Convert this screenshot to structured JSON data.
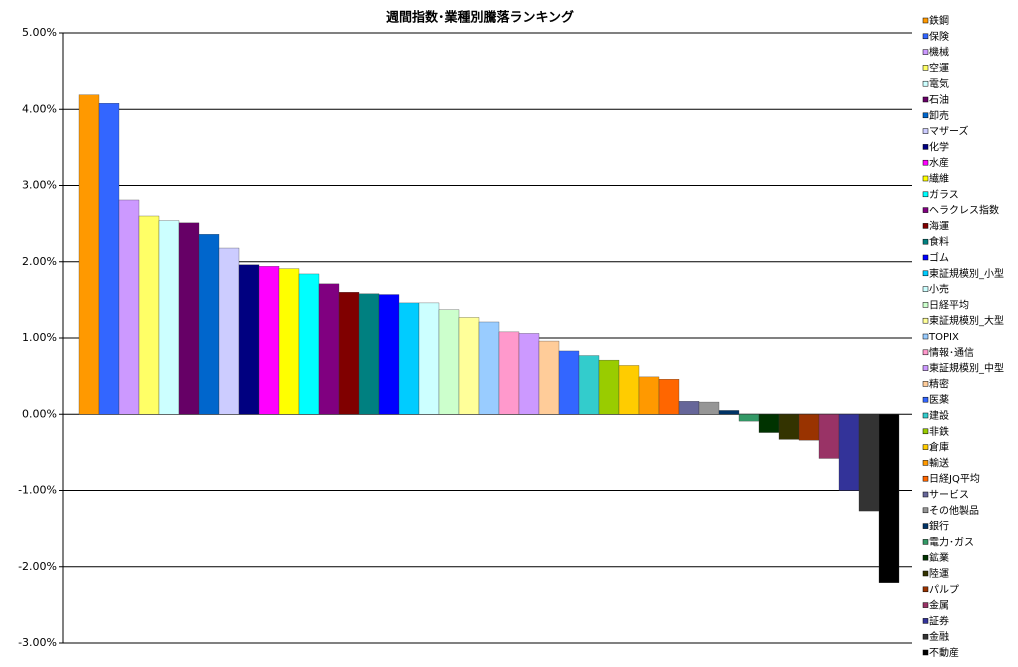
{
  "chart_data": {
    "type": "bar",
    "title": "週間指数･業種別騰落ランキング",
    "categories": [
      "鉄鋼",
      "保険",
      "機械",
      "空運",
      "電気",
      "石油",
      "卸売",
      "マザーズ",
      "化学",
      "水産",
      "繊維",
      "ガラス",
      "ヘラクレス指数",
      "海運",
      "食料",
      "ゴム",
      "東証規模別_小型",
      "小売",
      "日経平均",
      "東証規模別_大型",
      "TOPIX",
      "情報･通信",
      "東証規模別_中型",
      "精密",
      "医薬",
      "建設",
      "非鉄",
      "倉庫",
      "輸送",
      "日経JQ平均",
      "サービス",
      "その他製品",
      "銀行",
      "電力･ガス",
      "鉱業",
      "陸運",
      "パルプ",
      "金属",
      "証券",
      "金融",
      "不動産"
    ],
    "values": [
      4.19,
      4.08,
      2.81,
      2.6,
      2.54,
      2.51,
      2.36,
      2.18,
      1.96,
      1.94,
      1.91,
      1.84,
      1.71,
      1.6,
      1.58,
      1.57,
      1.46,
      1.46,
      1.37,
      1.27,
      1.21,
      1.08,
      1.06,
      0.96,
      0.83,
      0.77,
      0.71,
      0.64,
      0.49,
      0.46,
      0.17,
      0.16,
      0.05,
      -0.09,
      -0.24,
      -0.33,
      -0.34,
      -0.58,
      -1.0,
      -1.27,
      -2.21
    ],
    "colors": [
      "#ff9900",
      "#3366ff",
      "#cc99ff",
      "#ffff66",
      "#ccffff",
      "#660066",
      "#0066cc",
      "#ccccff",
      "#000080",
      "#ff00ff",
      "#ffff00",
      "#00ffff",
      "#800080",
      "#800000",
      "#008080",
      "#0000ff",
      "#00ccff",
      "#ccffff",
      "#ccffcc",
      "#ffff99",
      "#99ccff",
      "#ff99cc",
      "#cc99ff",
      "#ffcc99",
      "#3366ff",
      "#33cccc",
      "#99cc00",
      "#ffcc00",
      "#ff9900",
      "#ff6600",
      "#666699",
      "#969696",
      "#003366",
      "#339966",
      "#003300",
      "#333300",
      "#993300",
      "#993366",
      "#333399",
      "#333333",
      "#000000"
    ],
    "ylim": [
      -3,
      5
    ],
    "yticks": [
      {
        "value": -3,
        "label": "-3.00%"
      },
      {
        "value": -2,
        "label": "-2.00%"
      },
      {
        "value": -1,
        "label": "-1.00%"
      },
      {
        "value": 0,
        "label": "0.00%"
      },
      {
        "value": 1,
        "label": "1.00%"
      },
      {
        "value": 2,
        "label": "2.00%"
      },
      {
        "value": 3,
        "label": "3.00%"
      },
      {
        "value": 4,
        "label": "4.00%"
      },
      {
        "value": 5,
        "label": "5.00%"
      }
    ],
    "grid": true
  }
}
